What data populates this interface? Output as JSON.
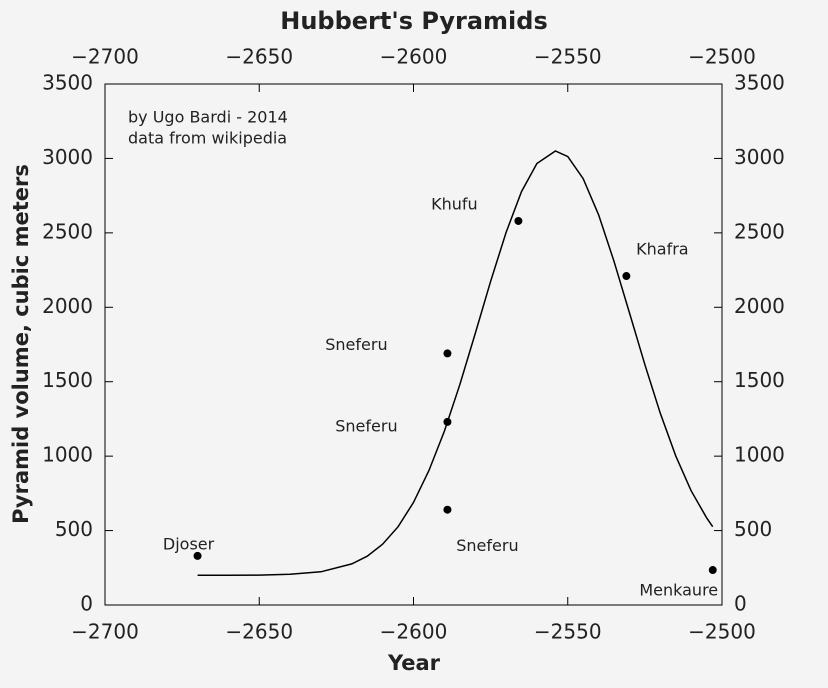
{
  "chart_data": {
    "type": "scatter",
    "title": "Hubbert's Pyramids",
    "xlabel": "Year",
    "ylabel": "Pyramid volume, cubic meters",
    "annotations": [
      "by Ugo Bardi - 2014",
      "data from wikipedia"
    ],
    "xlim": [
      -2700,
      -2500
    ],
    "xticks": [
      {
        "value": -2700,
        "label": "−2700"
      },
      {
        "value": -2650,
        "label": "−2650"
      },
      {
        "value": -2600,
        "label": "−2600"
      },
      {
        "value": -2550,
        "label": "−2550"
      },
      {
        "value": -2500,
        "label": "−2500"
      }
    ],
    "ylim": [
      0,
      3500
    ],
    "yticks": [
      0,
      500,
      1000,
      1500,
      2000,
      2500,
      3000,
      3500
    ],
    "points": {
      "color": "#000000",
      "x": [
        -2670,
        -2589,
        -2589,
        -2589,
        -2566,
        -2531,
        -2503
      ],
      "values": [
        330,
        1690,
        1230,
        640,
        2580,
        2210,
        235
      ],
      "labels": [
        "Djoser",
        "Sneferu",
        "Sneferu",
        "Sneferu",
        "Khufu",
        "Khafra",
        "Menkaure"
      ]
    },
    "curve": {
      "color": "#000000",
      "x": [
        -2670,
        -2660,
        -2650,
        -2640,
        -2630,
        -2620,
        -2615,
        -2610,
        -2605,
        -2600,
        -2595,
        -2590,
        -2585,
        -2580,
        -2575,
        -2570,
        -2565,
        -2560,
        -2554,
        -2550,
        -2545,
        -2540,
        -2535,
        -2530,
        -2525,
        -2520,
        -2515,
        -2510,
        -2505,
        -2503
      ],
      "values": [
        200,
        200,
        201,
        206,
        223,
        276,
        328,
        409,
        526,
        689,
        903,
        1168,
        1480,
        1823,
        2174,
        2503,
        2777,
        2966,
        3050,
        3012,
        2864,
        2621,
        2309,
        1964,
        1614,
        1288,
        1002,
        768,
        586,
        526
      ]
    }
  }
}
